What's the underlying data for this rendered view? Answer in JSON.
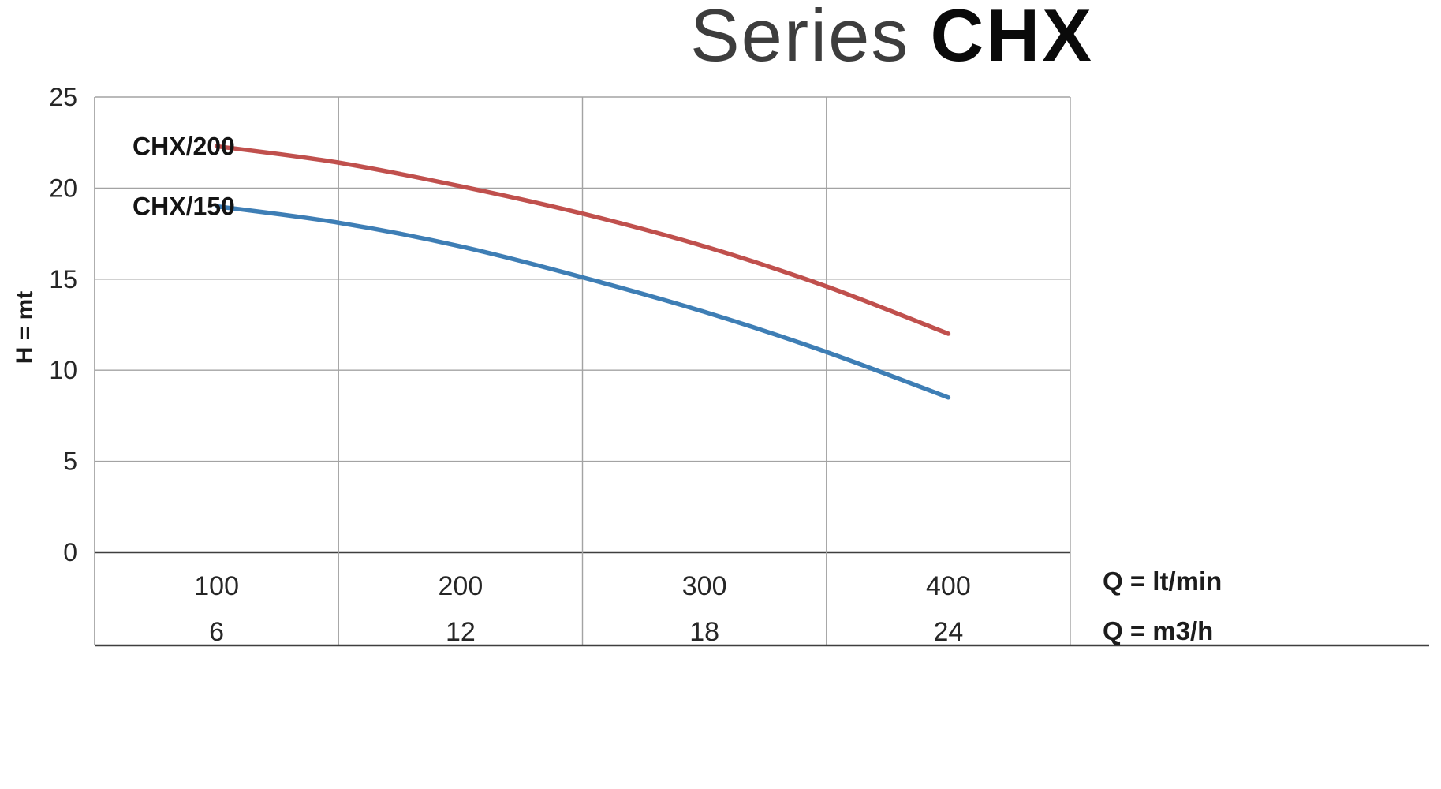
{
  "title": {
    "light": "Series",
    "bold": "CHX"
  },
  "chart_data": {
    "type": "line",
    "title": "Series CHX",
    "ylabel": "H = mt",
    "xlabel_primary": "Q = lt/min",
    "xlabel_secondary": "Q = m3/h",
    "ylim": [
      0,
      25
    ],
    "xlim": [
      50,
      450
    ],
    "y_ticks": [
      0,
      5,
      10,
      15,
      20,
      25
    ],
    "x_gridlines": [
      50,
      150,
      250,
      350,
      450
    ],
    "x_ticks_ltmin": [
      100,
      200,
      300,
      400
    ],
    "x_ticks_m3h": [
      6,
      12,
      18,
      24
    ],
    "grid": true,
    "legend_position": "inline-left",
    "x": [
      100,
      150,
      200,
      250,
      300,
      350,
      400
    ],
    "series": [
      {
        "name": "CHX/200",
        "color": "#c0504d",
        "values": [
          22.3,
          21.4,
          20.1,
          18.6,
          16.8,
          14.6,
          12.0
        ]
      },
      {
        "name": "CHX/150",
        "color": "#3e7eb5",
        "values": [
          19.0,
          18.1,
          16.8,
          15.1,
          13.2,
          11.0,
          8.5
        ]
      }
    ]
  },
  "colors": {
    "grid": "#a3a3a3",
    "axis_strong": "#3f3f3f",
    "tick_text": "#262626",
    "series_label_text": "#141414"
  }
}
